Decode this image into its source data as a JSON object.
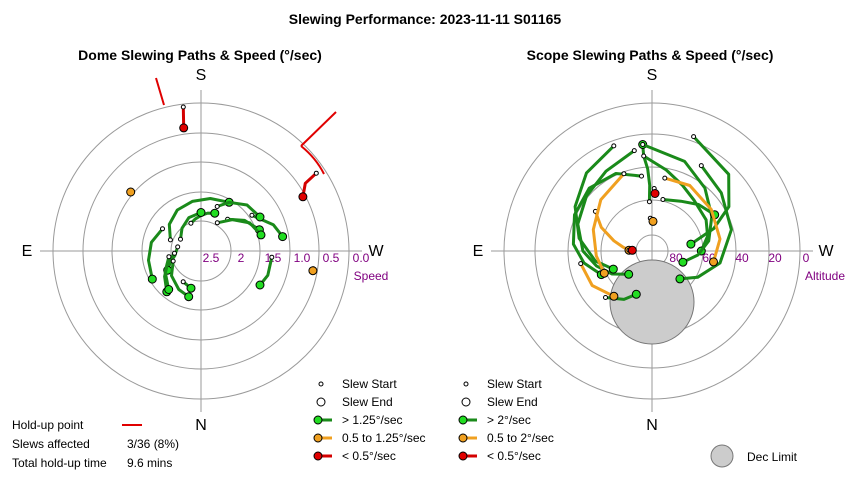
{
  "figure": {
    "title": "Slewing Performance: 2023-11-11 S01165"
  },
  "colors": {
    "fast": "#1a8a1a",
    "fast_fill": "#22dd22",
    "medium": "#f0a020",
    "medium_fill": "#f0a020",
    "slow": "#d40000",
    "slow_fill": "#e00000",
    "holdup": "#e00000",
    "grid": "#9a9a9a",
    "dec_limit": "#cccccc",
    "tick": "#800080"
  },
  "chart_data": [
    {
      "type": "scatter",
      "subtype": "polar-path",
      "title": "Dome Slewing Paths & Speed (°/sec)",
      "compass": {
        "top": "S",
        "bottom": "N",
        "left": "E",
        "right": "W"
      },
      "radial_axis": {
        "label": "Speed",
        "ticks": [
          "2.5",
          "2",
          "1.5",
          "1.0",
          "0.5",
          "0.0"
        ],
        "range": [
          2.5,
          0.0
        ]
      },
      "legend": [
        {
          "marker": "slew-start",
          "label": "Slew Start"
        },
        {
          "marker": "slew-end",
          "label": "Slew End"
        },
        {
          "marker": "fast",
          "label": "> 1.25°/sec"
        },
        {
          "marker": "medium",
          "label": "0.5 to 1.25°/sec"
        },
        {
          "marker": "slow",
          "label": "< 0.5°/sec"
        }
      ],
      "series": [
        {
          "speed": "fast",
          "points": [
            [
              -20,
              2.0
            ],
            [
              -10,
              1.95
            ],
            [
              0,
              1.9
            ],
            [
              10,
              1.85
            ],
            [
              20,
              1.82
            ]
          ]
        },
        {
          "speed": "fast",
          "points": [
            [
              -60,
              2.1
            ],
            [
              -40,
              2.0
            ],
            [
              -20,
              1.9
            ],
            [
              0,
              1.85
            ]
          ]
        },
        {
          "speed": "fast",
          "points": [
            [
              -70,
              1.95
            ],
            [
              -50,
              1.8
            ],
            [
              -30,
              1.7
            ],
            [
              -10,
              1.65
            ],
            [
              10,
              1.6
            ],
            [
              30,
              1.55
            ]
          ]
        },
        {
          "speed": "fast",
          "points": [
            [
              -80,
              2.1
            ],
            [
              -100,
              2.05
            ],
            [
              -110,
              1.95
            ],
            [
              -120,
              1.85
            ]
          ]
        },
        {
          "speed": "fast",
          "points": [
            [
              -95,
              2.05
            ],
            [
              -110,
              1.9
            ],
            [
              -125,
              1.75
            ],
            [
              -140,
              1.6
            ]
          ]
        },
        {
          "speed": "fast",
          "points": [
            [
              -100,
              1.95
            ],
            [
              -120,
              1.8
            ],
            [
              -140,
              1.65
            ]
          ]
        },
        {
          "speed": "fast",
          "points": [
            [
              -110,
              2.0
            ],
            [
              -130,
              1.85
            ],
            [
              -150,
              1.75
            ],
            [
              -165,
              1.7
            ]
          ]
        },
        {
          "speed": "fast",
          "points": [
            [
              -60,
              1.75
            ],
            [
              -80,
              1.65
            ],
            [
              -100,
              1.6
            ],
            [
              -120,
              1.55
            ]
          ]
        },
        {
          "speed": "fast",
          "points": [
            [
              40,
              1.8
            ],
            [
              55,
              1.6
            ],
            [
              70,
              1.45
            ]
          ]
        },
        {
          "speed": "fast",
          "points": [
            [
              30,
              1.95
            ],
            [
              45,
              1.75
            ],
            [
              60,
              1.55
            ],
            [
              75,
              1.45
            ]
          ]
        },
        {
          "speed": "fast",
          "points": [
            [
              55,
              1.45
            ],
            [
              70,
              1.2
            ],
            [
              80,
              1.1
            ]
          ]
        },
        {
          "speed": "fast",
          "points": [
            [
              95,
              1.3
            ],
            [
              110,
              1.3
            ],
            [
              120,
              1.35
            ]
          ]
        },
        {
          "speed": "fast",
          "points": [
            [
              20,
              1.7
            ],
            [
              30,
              1.55
            ],
            [
              45,
              1.4
            ],
            [
              60,
              1.35
            ]
          ]
        },
        {
          "speed": "fast",
          "points": [
            [
              -150,
              1.9
            ],
            [
              -165,
              1.85
            ]
          ]
        },
        {
          "speed": "medium",
          "points": [
            [
              -50,
              0.95
            ],
            [
              -50,
              0.95
            ]
          ]
        },
        {
          "speed": "medium",
          "points": [
            [
              99,
              0.58
            ],
            [
              100,
              0.58
            ]
          ]
        },
        {
          "speed": "slow",
          "points": [
            [
              -7,
              0.05
            ],
            [
              -8,
              0.4
            ]
          ]
        },
        {
          "speed": "slow",
          "points": [
            [
              56,
              0.15
            ],
            [
              57,
              0.4
            ],
            [
              62,
              0.55
            ]
          ]
        }
      ],
      "holdup": {
        "label": "Hold-up point",
        "slews_affected_label": "Slews affected",
        "slews_affected": "3/36 (8%)",
        "total_label": "Total hold-up time",
        "total": "9.6 mins"
      }
    },
    {
      "type": "scatter",
      "subtype": "polar-path",
      "title": "Scope Slewing Paths & Speed (°/sec)",
      "compass": {
        "top": "S",
        "bottom": "N",
        "left": "E",
        "right": "W"
      },
      "radial_axis": {
        "label": "Altitude",
        "ticks": [
          "80",
          "60",
          "40",
          "20",
          "0"
        ],
        "range": [
          90,
          0
        ]
      },
      "dec_limit_label": "Dec Limit",
      "legend": [
        {
          "marker": "slew-start",
          "label": "Slew Start"
        },
        {
          "marker": "slew-end",
          "label": "Slew End"
        },
        {
          "marker": "fast",
          "label": "> 2°/sec"
        },
        {
          "marker": "medium",
          "label": "0.5 to 2°/sec"
        },
        {
          "marker": "slow",
          "label": "< 0.5°/sec"
        }
      ],
      "series": [
        {
          "speed": "fast",
          "points": [
            [
              -3,
              60
            ],
            [
              -2,
              50
            ],
            [
              -3,
              40
            ],
            [
              -5,
              32
            ],
            [
              -5,
              25
            ]
          ]
        },
        {
          "speed": "fast",
          "points": [
            [
              -5,
              32
            ],
            [
              10,
              40
            ],
            [
              25,
              46
            ],
            [
              40,
              50
            ],
            [
              60,
              52
            ],
            [
              75,
              55
            ],
            [
              90,
              60
            ]
          ]
        },
        {
          "speed": "fast",
          "points": [
            [
              -5,
              25
            ],
            [
              20,
              32
            ],
            [
              40,
              40
            ],
            [
              60,
              48
            ],
            [
              80,
              55
            ],
            [
              95,
              62
            ],
            [
              110,
              70
            ]
          ]
        },
        {
          "speed": "fast",
          "points": [
            [
              -10,
              28
            ],
            [
              -30,
              34
            ],
            [
              -50,
              38
            ],
            [
              -70,
              42
            ],
            [
              -90,
              48
            ],
            [
              -105,
              55
            ],
            [
              -120,
              62
            ],
            [
              -135,
              70
            ]
          ]
        },
        {
          "speed": "fast",
          "points": [
            [
              -20,
              22
            ],
            [
              -40,
              28
            ],
            [
              -60,
              36
            ],
            [
              -80,
              45
            ],
            [
              -100,
              55
            ],
            [
              -115,
              64
            ]
          ]
        },
        {
          "speed": "fast",
          "points": [
            [
              20,
              16
            ],
            [
              45,
              24
            ],
            [
              60,
              36
            ],
            [
              70,
              50
            ],
            [
              80,
              66
            ]
          ]
        },
        {
          "speed": "fast",
          "points": [
            [
              -8,
              44
            ],
            [
              -25,
              38
            ],
            [
              -45,
              36
            ],
            [
              -65,
              38
            ],
            [
              -85,
              42
            ],
            [
              -100,
              48
            ],
            [
              -115,
              56
            ]
          ]
        },
        {
          "speed": "fast",
          "points": [
            [
              30,
              30
            ],
            [
              50,
              35
            ],
            [
              75,
              40
            ],
            [
              100,
              48
            ],
            [
              120,
              58
            ],
            [
              135,
              66
            ]
          ]
        },
        {
          "speed": "fast",
          "points": [
            [
              12,
              58
            ],
            [
              30,
              55
            ],
            [
              45,
              50
            ],
            [
              60,
              46
            ]
          ]
        },
        {
          "speed": "fast",
          "points": [
            [
              -135,
              50
            ],
            [
              -150,
              56
            ],
            [
              -160,
              62
            ]
          ]
        },
        {
          "speed": "medium",
          "points": [
            [
              -55,
              48
            ],
            [
              -65,
              56
            ],
            [
              -75,
              66
            ],
            [
              -82,
              72
            ],
            [
              -88,
              76
            ]
          ]
        },
        {
          "speed": "medium",
          "points": [
            [
              -20,
              40
            ],
            [
              -45,
              46
            ],
            [
              -70,
              52
            ],
            [
              -95,
              56
            ],
            [
              -115,
              58
            ]
          ]
        },
        {
          "speed": "medium",
          "points": [
            [
              10,
              45
            ],
            [
              30,
              44
            ],
            [
              55,
              46
            ],
            [
              80,
              48
            ],
            [
              100,
              52
            ]
          ]
        },
        {
          "speed": "medium",
          "points": [
            [
              -100,
              46
            ],
            [
              -120,
              48
            ],
            [
              -140,
              54
            ]
          ]
        },
        {
          "speed": "medium",
          "points": [
            [
              -3,
              70
            ],
            [
              2,
              72
            ]
          ]
        },
        {
          "speed": "slow",
          "points": [
            [
              2,
              52
            ],
            [
              3,
              55
            ]
          ]
        },
        {
          "speed": "slow",
          "points": [
            [
              -88,
              76
            ],
            [
              -88,
              78
            ]
          ]
        }
      ]
    }
  ]
}
